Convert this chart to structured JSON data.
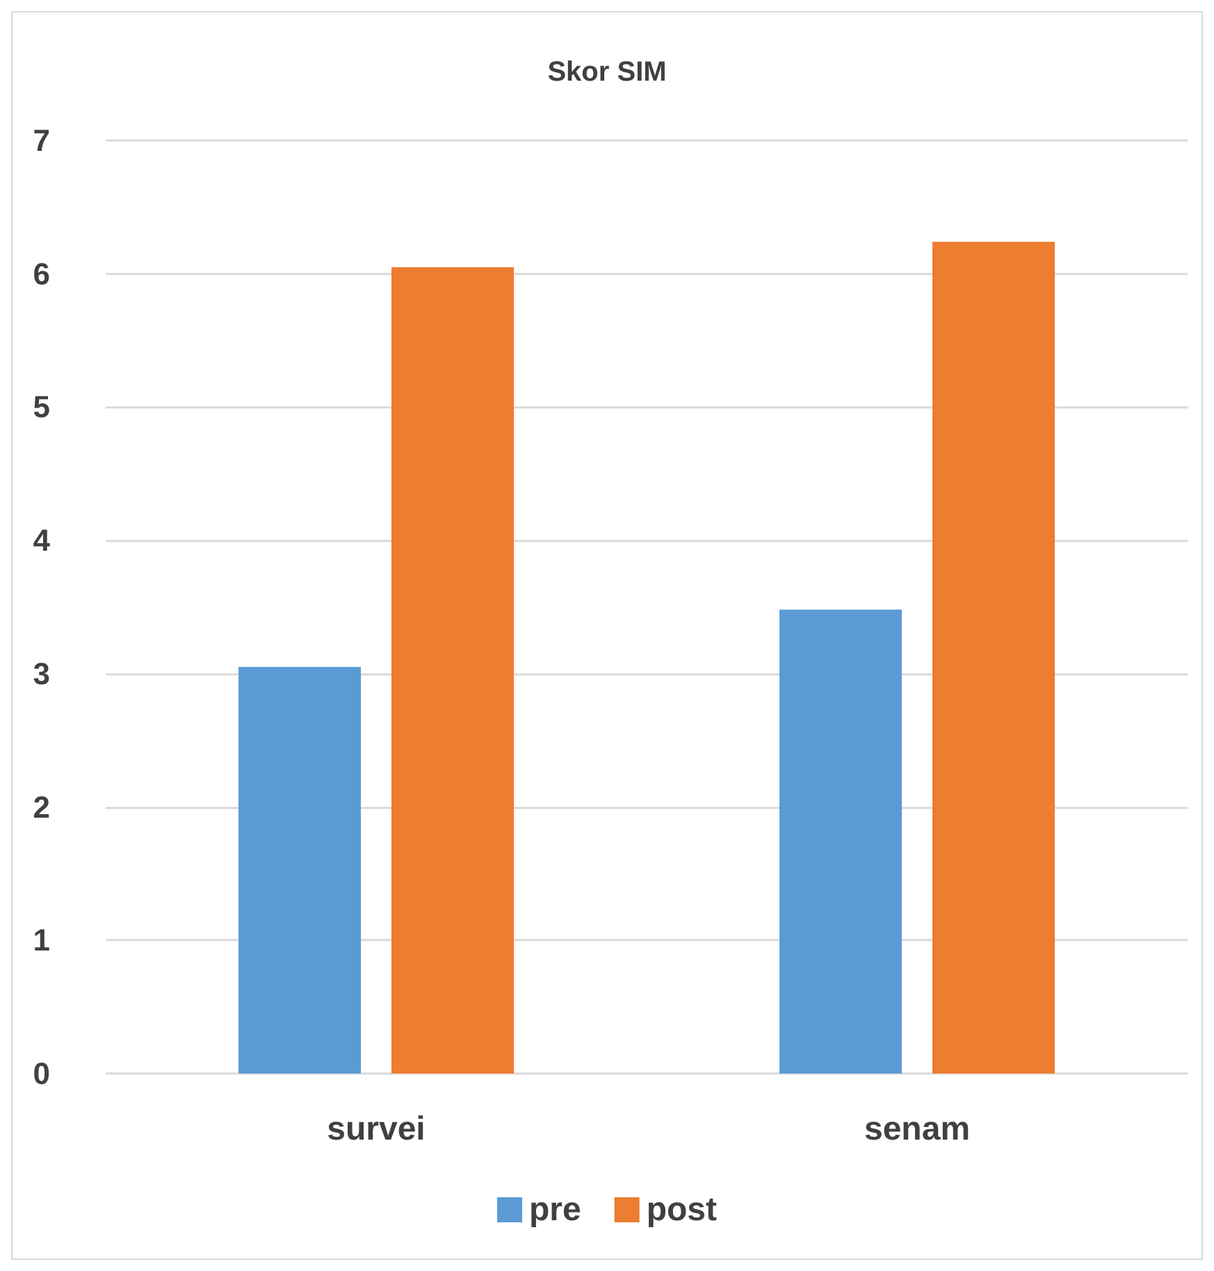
{
  "chart_data": {
    "type": "bar",
    "title": "Skor SIM",
    "categories": [
      "survei",
      "senam"
    ],
    "series": [
      {
        "name": "pre",
        "color": "#5b9bd5",
        "values": [
          3.05,
          3.48
        ]
      },
      {
        "name": "post",
        "color": "#ed7d31",
        "values": [
          6.05,
          6.24
        ]
      }
    ],
    "ylim": [
      0,
      7
    ],
    "yticks": [
      0,
      1,
      2,
      3,
      4,
      5,
      6,
      7
    ],
    "grid": "y",
    "legend": "bottom"
  }
}
